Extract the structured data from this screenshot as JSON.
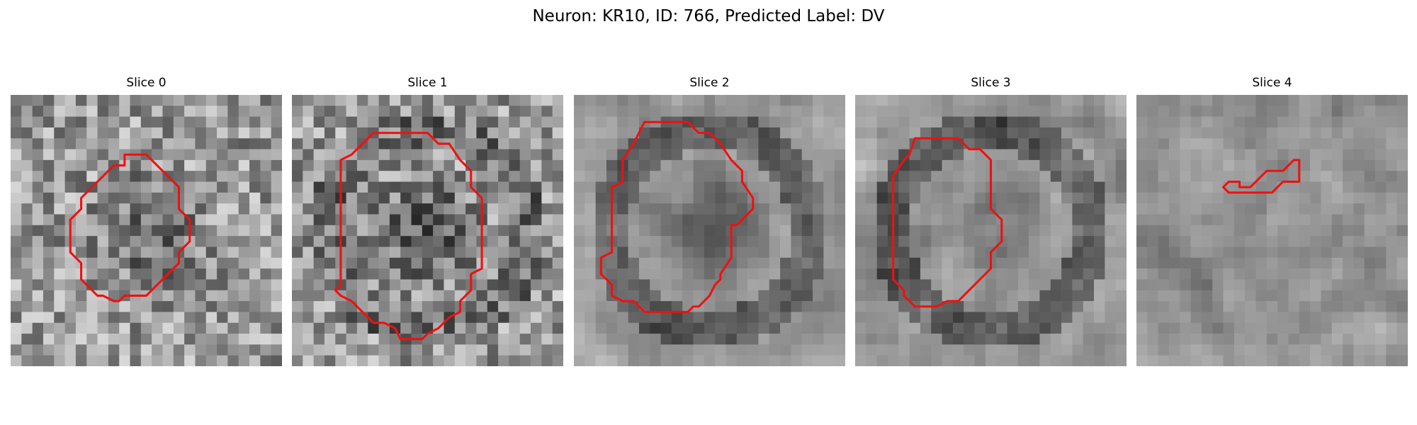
{
  "figure": {
    "title": "Neuron: KR10, ID: 766, Predicted Label: DV",
    "contour_color": "#ee1111"
  },
  "slices": [
    {
      "title": "Slice 0",
      "seed": 11,
      "center_dark": 0.22,
      "ring": 0.0,
      "blur": 0,
      "contour": [
        [
          10.5,
          5.5
        ],
        [
          12.5,
          5.5
        ],
        [
          14.5,
          7.5
        ],
        [
          15.5,
          8.5
        ],
        [
          15.5,
          10.5
        ],
        [
          16.5,
          11.5
        ],
        [
          16.5,
          13.5
        ],
        [
          15.5,
          14.5
        ],
        [
          15.5,
          15.5
        ],
        [
          14.5,
          16.5
        ],
        [
          12.5,
          18.5
        ],
        [
          10.5,
          18.5
        ],
        [
          10.0,
          19.0
        ],
        [
          9.5,
          19.0
        ],
        [
          8.5,
          18.5
        ],
        [
          8.0,
          18.5
        ],
        [
          6.5,
          17.0
        ],
        [
          6.5,
          15.5
        ],
        [
          5.5,
          14.5
        ],
        [
          5.5,
          11.5
        ],
        [
          6.5,
          10.5
        ],
        [
          6.5,
          9.5
        ],
        [
          7.5,
          8.5
        ],
        [
          8.5,
          7.5
        ],
        [
          9.5,
          6.5
        ],
        [
          10.5,
          6.5
        ]
      ]
    },
    {
      "title": "Slice 1",
      "seed": 23,
      "center_dark": 0.28,
      "ring": 0.18,
      "blur": 0,
      "contour": [
        [
          7.5,
          3.5
        ],
        [
          12.5,
          3.5
        ],
        [
          13.5,
          4.5
        ],
        [
          14.5,
          4.5
        ],
        [
          15.5,
          6.0
        ],
        [
          16.5,
          7.0
        ],
        [
          16.5,
          8.5
        ],
        [
          17.5,
          9.5
        ],
        [
          17.5,
          16.0
        ],
        [
          16.5,
          16.5
        ],
        [
          16.5,
          18.0
        ],
        [
          15.5,
          19.0
        ],
        [
          15.5,
          20.0
        ],
        [
          14.5,
          20.5
        ],
        [
          13.5,
          21.5
        ],
        [
          12.5,
          22.0
        ],
        [
          12.0,
          22.5
        ],
        [
          10.0,
          22.5
        ],
        [
          9.5,
          21.5
        ],
        [
          8.5,
          21.0
        ],
        [
          7.5,
          21.0
        ],
        [
          5.5,
          19.0
        ],
        [
          4.5,
          18.5
        ],
        [
          4.0,
          18.0
        ],
        [
          4.5,
          17.5
        ],
        [
          4.5,
          17.0
        ],
        [
          4.5,
          16.0
        ],
        [
          4.5,
          6.0
        ],
        [
          5.5,
          5.5
        ],
        [
          6.5,
          4.5
        ]
      ]
    },
    {
      "title": "Slice 2",
      "seed": 37,
      "center_dark": 0.3,
      "ring": 0.28,
      "blur": 1,
      "contour": [
        [
          6.5,
          2.5
        ],
        [
          10.5,
          2.5
        ],
        [
          11.5,
          3.5
        ],
        [
          12.5,
          3.5
        ],
        [
          13.5,
          4.5
        ],
        [
          14.5,
          6.0
        ],
        [
          15.5,
          7.0
        ],
        [
          15.5,
          8.0
        ],
        [
          16.5,
          9.5
        ],
        [
          16.5,
          10.5
        ],
        [
          16.0,
          11.0
        ],
        [
          15.5,
          11.5
        ],
        [
          15.0,
          12.0
        ],
        [
          14.5,
          12.0
        ],
        [
          14.5,
          15.0
        ],
        [
          13.5,
          16.5
        ],
        [
          13.5,
          17.0
        ],
        [
          13.0,
          17.5
        ],
        [
          12.5,
          18.5
        ],
        [
          11.5,
          19.5
        ],
        [
          11.0,
          19.5
        ],
        [
          10.5,
          20.0
        ],
        [
          6.5,
          20.0
        ],
        [
          5.5,
          19.0
        ],
        [
          4.5,
          19.0
        ],
        [
          3.5,
          18.5
        ],
        [
          3.5,
          17.5
        ],
        [
          2.5,
          16.5
        ],
        [
          2.5,
          15.0
        ],
        [
          3.5,
          14.5
        ],
        [
          3.5,
          12.5
        ],
        [
          3.5,
          9.0
        ],
        [
          3.5,
          8.5
        ],
        [
          4.5,
          8.0
        ],
        [
          4.5,
          6.0
        ],
        [
          5.5,
          4.5
        ],
        [
          6.0,
          3.5
        ]
      ]
    },
    {
      "title": "Slice 3",
      "seed": 51,
      "center_dark": 0.1,
      "ring": 0.3,
      "blur": 1,
      "contour": [
        [
          5.5,
          4.0
        ],
        [
          9.5,
          4.0
        ],
        [
          10.5,
          5.0
        ],
        [
          11.5,
          5.0
        ],
        [
          12.5,
          6.0
        ],
        [
          12.5,
          10.5
        ],
        [
          13.5,
          11.5
        ],
        [
          13.5,
          13.5
        ],
        [
          13.0,
          14.0
        ],
        [
          12.5,
          14.5
        ],
        [
          12.5,
          16.0
        ],
        [
          11.5,
          17.0
        ],
        [
          10.5,
          18.0
        ],
        [
          9.5,
          19.0
        ],
        [
          8.5,
          19.0
        ],
        [
          7.5,
          19.5
        ],
        [
          6.5,
          19.5
        ],
        [
          5.5,
          19.5
        ],
        [
          4.5,
          18.5
        ],
        [
          4.5,
          18.0
        ],
        [
          4.0,
          17.5
        ],
        [
          3.5,
          17.0
        ],
        [
          3.5,
          16.0
        ],
        [
          3.5,
          7.5
        ],
        [
          4.5,
          6.0
        ],
        [
          5.0,
          5.5
        ]
      ]
    },
    {
      "title": "Slice 4",
      "seed": 67,
      "center_dark": 0.05,
      "ring": 0.05,
      "blur": 1,
      "contour": [
        [
          9.5,
          8.5
        ],
        [
          10.5,
          8.5
        ],
        [
          11.0,
          8.0
        ],
        [
          11.5,
          7.5
        ],
        [
          12.0,
          7.0
        ],
        [
          13.5,
          7.0
        ],
        [
          14.0,
          6.5
        ],
        [
          14.5,
          6.0
        ],
        [
          15.0,
          6.0
        ],
        [
          15.0,
          7.5
        ],
        [
          15.0,
          8.0
        ],
        [
          13.5,
          8.0
        ],
        [
          13.0,
          8.5
        ],
        [
          12.5,
          9.0
        ],
        [
          10.5,
          9.0
        ],
        [
          8.5,
          9.0
        ],
        [
          8.0,
          8.5
        ],
        [
          8.5,
          8.0
        ],
        [
          9.5,
          8.0
        ]
      ]
    }
  ]
}
